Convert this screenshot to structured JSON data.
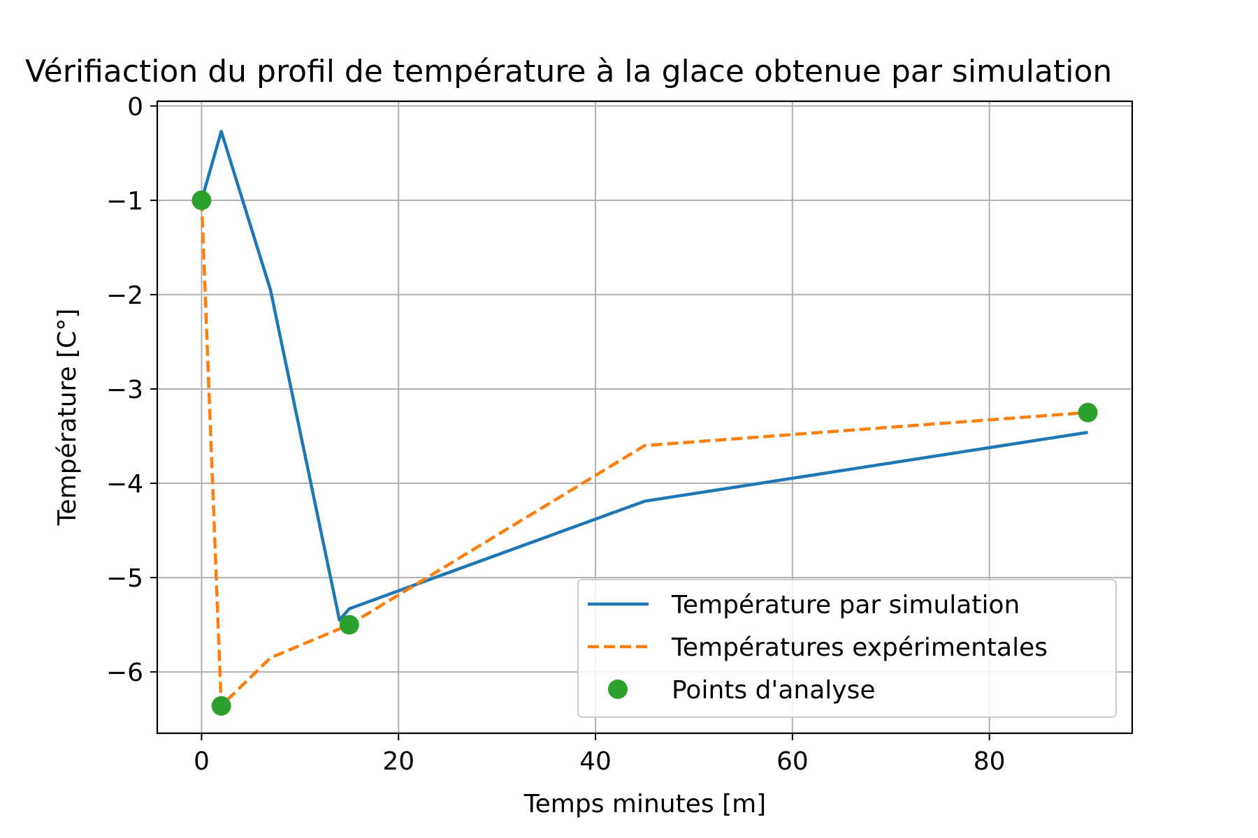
{
  "chart_data": {
    "type": "line",
    "title": "Vérifiaction du profil de température à la glace obtenue par simulation",
    "xlabel": "Temps minutes [m]",
    "ylabel": "Température [C°]",
    "xlim": [
      -4.5,
      94.5
    ],
    "ylim": [
      -6.65,
      0.05
    ],
    "xticks": [
      0,
      20,
      40,
      60,
      80
    ],
    "xtick_labels": [
      "0",
      "20",
      "40",
      "60",
      "80"
    ],
    "yticks": [
      0,
      -1,
      -2,
      -3,
      -4,
      -5,
      -6
    ],
    "ytick_labels": [
      "0",
      "−1",
      "−2",
      "−3",
      "−4",
      "−5",
      "−6"
    ],
    "grid": true,
    "legend_position": "lower-right",
    "series": [
      {
        "name": "Température par simulation",
        "style": "solid",
        "color": "#1f77b4",
        "x": [
          0,
          2,
          7,
          14,
          15,
          45,
          90
        ],
        "y": [
          -1.0,
          -0.27,
          -1.95,
          -5.45,
          -5.33,
          -4.19,
          -3.46
        ]
      },
      {
        "name": "Températures expérimentales",
        "style": "dashed",
        "color": "#ff7f0e",
        "x": [
          0,
          2,
          7,
          15,
          45,
          90
        ],
        "y": [
          -1.0,
          -6.36,
          -5.85,
          -5.5,
          -3.6,
          -3.25
        ]
      },
      {
        "name": "Points d'analyse",
        "style": "markers",
        "color": "#2ca02c",
        "x": [
          0,
          2,
          15,
          90
        ],
        "y": [
          -1.0,
          -6.36,
          -5.5,
          -3.25
        ]
      }
    ]
  }
}
